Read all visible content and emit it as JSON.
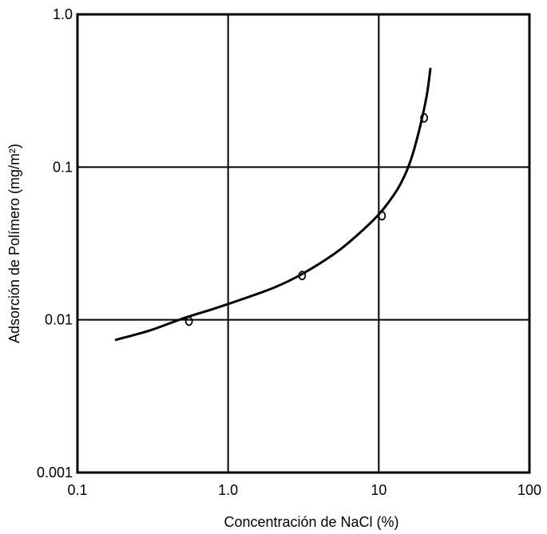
{
  "chart_data": {
    "type": "scatter",
    "title": "",
    "xlabel": "Concentración de NaCl (%)",
    "ylabel": "Adsorción de Polímero (mg/m²)",
    "xscale": "log",
    "yscale": "log",
    "xlim": [
      0.1,
      100
    ],
    "ylim": [
      0.001,
      1.0
    ],
    "grid": true,
    "legend": "none",
    "x_ticks": [
      {
        "value": 0.1,
        "label": "0.1"
      },
      {
        "value": 1,
        "label": "1.0"
      },
      {
        "value": 10,
        "label": "10"
      },
      {
        "value": 100,
        "label": "100"
      }
    ],
    "y_ticks": [
      {
        "value": 0.001,
        "label": "0.001"
      },
      {
        "value": 0.01,
        "label": "0.01"
      },
      {
        "value": 0.1,
        "label": "0.1"
      },
      {
        "value": 1,
        "label": "1.0"
      }
    ],
    "series": [
      {
        "kind": "points",
        "x": [
          0.55,
          3.1,
          10.5,
          20
        ],
        "y": [
          0.0098,
          0.0195,
          0.048,
          0.21
        ]
      },
      {
        "kind": "curve",
        "x": [
          0.18,
          0.3,
          0.5,
          0.8,
          1.2,
          2.0,
          3.0,
          5.0,
          7.0,
          10.0,
          13.0,
          15.0,
          16.5,
          18.0,
          19.5,
          21.0,
          22.0
        ],
        "y": [
          0.0074,
          0.0085,
          0.0102,
          0.0118,
          0.0135,
          0.0162,
          0.0196,
          0.0268,
          0.035,
          0.049,
          0.069,
          0.09,
          0.115,
          0.155,
          0.215,
          0.31,
          0.44
        ]
      }
    ],
    "colors": {
      "line": "#000000",
      "background": "#ffffff"
    }
  }
}
